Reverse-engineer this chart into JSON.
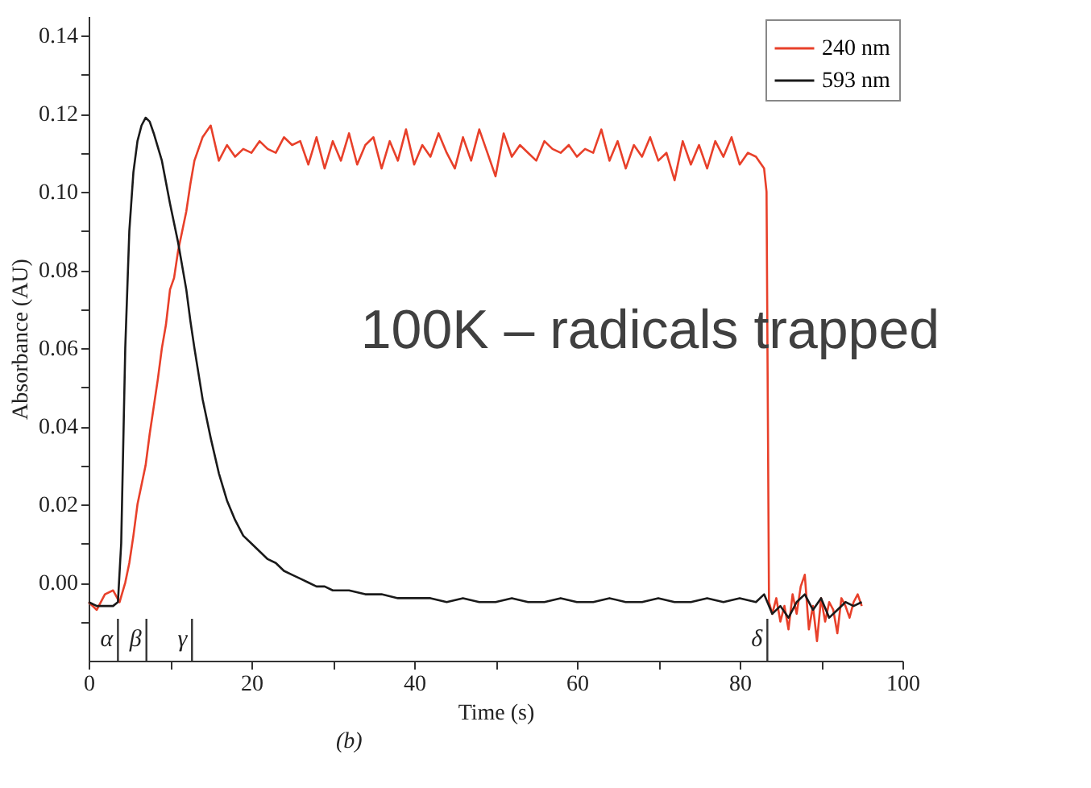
{
  "chart_data": {
    "type": "line",
    "xlabel": "Time (s)",
    "ylabel": "Absorbance (AU)",
    "annotations": [
      "100K – radicals trapped",
      "(b)"
    ],
    "xlim": [
      0,
      100
    ],
    "ylim": [
      -0.02,
      0.145
    ],
    "xticks": [
      0,
      {
        "value": 10,
        "label": null
      },
      20,
      {
        "value": 30,
        "label": null
      },
      40,
      {
        "value": 50,
        "label": null
      },
      60,
      {
        "value": 70,
        "label": null
      },
      80,
      {
        "value": 90,
        "label": null
      },
      100
    ],
    "yticks": [
      {
        "value": -0.01,
        "label": null
      },
      {
        "value": 0,
        "label": "0.00"
      },
      {
        "value": 0.01,
        "label": null
      },
      {
        "value": 0.02,
        "label": "0.02"
      },
      {
        "value": 0.03,
        "label": null
      },
      {
        "value": 0.04,
        "label": "0.04"
      },
      {
        "value": 0.05,
        "label": null
      },
      {
        "value": 0.06,
        "label": "0.06"
      },
      {
        "value": 0.07,
        "label": null
      },
      {
        "value": 0.08,
        "label": "0.08"
      },
      {
        "value": 0.09,
        "label": null
      },
      {
        "value": 0.1,
        "label": "0.10"
      },
      {
        "value": 0.11,
        "label": null
      },
      {
        "value": 0.12,
        "label": "0.12"
      },
      {
        "value": 0.13,
        "label": null
      },
      {
        "value": 0.14,
        "label": "0.14"
      }
    ],
    "grid": false,
    "legend": "top right",
    "marker": "none",
    "line_style": "solid",
    "ref_lines": [
      {
        "axis": "x",
        "value": 3.6,
        "label": "α"
      },
      {
        "axis": "x",
        "value": 7.1,
        "label": "β"
      },
      {
        "axis": "x",
        "value": 12.7,
        "label": "γ"
      },
      {
        "axis": "x",
        "value": 83.4,
        "label": "δ"
      }
    ],
    "series": [
      {
        "name": "240 nm",
        "color": "#e8402a",
        "x": [
          0,
          1,
          2,
          3,
          3.8,
          4.5,
          5,
          5.5,
          6,
          6.5,
          7,
          7.5,
          8,
          8.5,
          9,
          9.5,
          10,
          10.5,
          11,
          11.5,
          12,
          12.5,
          13,
          14,
          15,
          16,
          17,
          18,
          19,
          20,
          21,
          22,
          23,
          24,
          25,
          26,
          27,
          28,
          29,
          30,
          31,
          32,
          33,
          34,
          35,
          36,
          37,
          38,
          39,
          40,
          41,
          42,
          43,
          44,
          45,
          46,
          47,
          48,
          49,
          50,
          51,
          52,
          53,
          54,
          55,
          56,
          57,
          58,
          59,
          60,
          61,
          62,
          63,
          64,
          65,
          66,
          67,
          68,
          69,
          70,
          71,
          72,
          73,
          74,
          75,
          76,
          77,
          78,
          79,
          80,
          81,
          82,
          83,
          83.3,
          83.6,
          84,
          84.5,
          85,
          85.5,
          86,
          86.5,
          87,
          87.5,
          88,
          88.5,
          89,
          89.5,
          90,
          90.5,
          91,
          91.5,
          92,
          92.5,
          93,
          93.5,
          94,
          94.5,
          95
        ],
        "values": [
          -0.005,
          -0.007,
          -0.003,
          -0.002,
          -0.005,
          0.0,
          0.005,
          0.012,
          0.02,
          0.025,
          0.03,
          0.038,
          0.045,
          0.052,
          0.06,
          0.066,
          0.075,
          0.078,
          0.085,
          0.09,
          0.095,
          0.102,
          0.108,
          0.114,
          0.117,
          0.108,
          0.112,
          0.109,
          0.111,
          0.11,
          0.113,
          0.111,
          0.11,
          0.114,
          0.112,
          0.113,
          0.107,
          0.114,
          0.106,
          0.113,
          0.108,
          0.115,
          0.107,
          0.112,
          0.114,
          0.106,
          0.113,
          0.108,
          0.116,
          0.107,
          0.112,
          0.109,
          0.115,
          0.11,
          0.106,
          0.114,
          0.108,
          0.116,
          0.11,
          0.104,
          0.115,
          0.109,
          0.112,
          0.11,
          0.108,
          0.113,
          0.111,
          0.11,
          0.112,
          0.109,
          0.111,
          0.11,
          0.116,
          0.108,
          0.113,
          0.106,
          0.112,
          0.109,
          0.114,
          0.108,
          0.11,
          0.103,
          0.113,
          0.107,
          0.112,
          0.106,
          0.113,
          0.109,
          0.114,
          0.107,
          0.11,
          0.109,
          0.106,
          0.1,
          -0.005,
          -0.008,
          -0.004,
          -0.01,
          -0.006,
          -0.012,
          -0.003,
          -0.008,
          -0.001,
          0.002,
          -0.012,
          -0.006,
          -0.015,
          -0.004,
          -0.01,
          -0.005,
          -0.007,
          -0.013,
          -0.004,
          -0.006,
          -0.009,
          -0.005,
          -0.003,
          -0.006
        ]
      },
      {
        "name": "593 nm",
        "color": "#1a1a1a",
        "x": [
          0,
          1,
          2,
          3,
          3.6,
          4,
          4.5,
          5,
          5.5,
          6,
          6.5,
          7,
          7.5,
          8,
          9,
          10,
          11,
          12,
          12.5,
          13,
          14,
          15,
          16,
          17,
          18,
          19,
          20,
          21,
          22,
          23,
          24,
          25,
          26,
          27,
          28,
          29,
          30,
          32,
          34,
          36,
          38,
          40,
          42,
          44,
          46,
          48,
          50,
          52,
          54,
          56,
          58,
          60,
          62,
          64,
          66,
          68,
          70,
          72,
          74,
          76,
          78,
          80,
          82,
          83,
          84,
          85,
          86,
          87,
          88,
          89,
          90,
          91,
          92,
          93,
          94,
          95
        ],
        "values": [
          -0.005,
          -0.006,
          -0.006,
          -0.006,
          -0.005,
          0.01,
          0.06,
          0.09,
          0.105,
          0.113,
          0.117,
          0.119,
          0.118,
          0.115,
          0.108,
          0.097,
          0.087,
          0.075,
          0.067,
          0.06,
          0.047,
          0.037,
          0.028,
          0.021,
          0.016,
          0.012,
          0.01,
          0.008,
          0.006,
          0.005,
          0.003,
          0.002,
          0.001,
          0.0,
          -0.001,
          -0.001,
          -0.002,
          -0.002,
          -0.003,
          -0.003,
          -0.004,
          -0.004,
          -0.004,
          -0.005,
          -0.004,
          -0.005,
          -0.005,
          -0.004,
          -0.005,
          -0.005,
          -0.004,
          -0.005,
          -0.005,
          -0.004,
          -0.005,
          -0.005,
          -0.004,
          -0.005,
          -0.005,
          -0.004,
          -0.005,
          -0.004,
          -0.005,
          -0.003,
          -0.008,
          -0.006,
          -0.009,
          -0.005,
          -0.003,
          -0.007,
          -0.004,
          -0.009,
          -0.007,
          -0.005,
          -0.006,
          -0.005
        ]
      }
    ]
  }
}
